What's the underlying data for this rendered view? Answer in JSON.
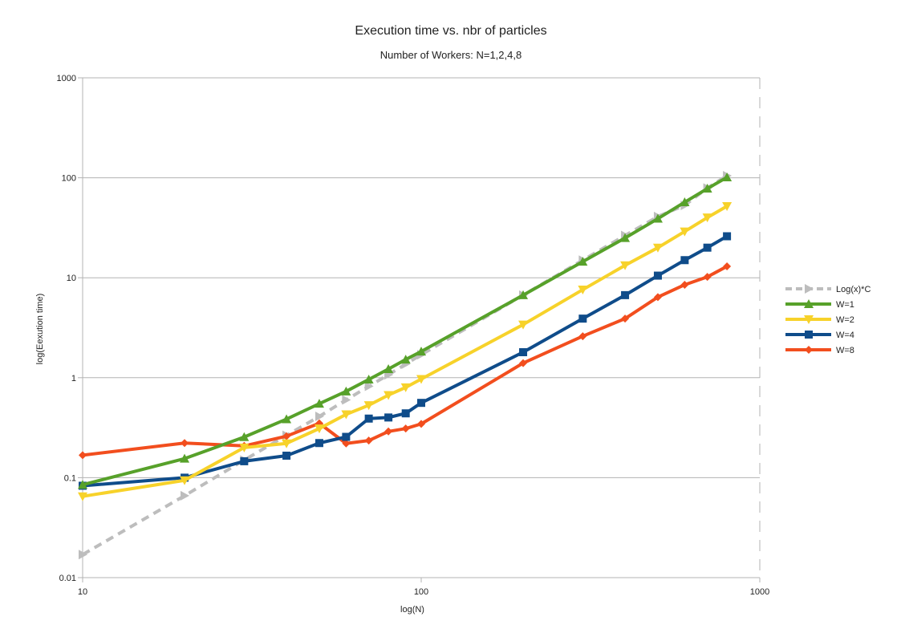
{
  "chart_data": {
    "type": "line",
    "title": "Execution time vs. nbr of particles",
    "subtitle": "Number of Workers: N=1,2,4,8",
    "xlabel": "log(N)",
    "ylabel": "log(Eexution time)",
    "x_scale": "log",
    "y_scale": "log",
    "xlim": [
      10,
      1000
    ],
    "ylim": [
      0.01,
      1000
    ],
    "x_ticks": [
      "10",
      "100",
      "1000"
    ],
    "y_ticks": [
      "0.01",
      "0.1",
      "1",
      "10",
      "100",
      "1000"
    ],
    "grid": true,
    "legend_position": "right",
    "series": [
      {
        "name": "Log(x)*C",
        "color": "#bdbdbd",
        "dashed": true,
        "marker": "triangle-right",
        "x": [
          10,
          20,
          30,
          40,
          50,
          60,
          70,
          80,
          90,
          100,
          200,
          300,
          400,
          500,
          600,
          700,
          800
        ],
        "y": [
          0.017,
          0.066,
          0.15,
          0.265,
          0.41,
          0.6,
          0.82,
          1.07,
          1.37,
          1.7,
          6.7,
          15,
          26.5,
          41,
          53,
          79,
          105
        ]
      },
      {
        "name": "W=1",
        "color": "#57a12a",
        "marker": "triangle-up",
        "x": [
          10,
          20,
          30,
          40,
          50,
          60,
          70,
          80,
          90,
          100,
          200,
          300,
          400,
          500,
          600,
          700,
          800
        ],
        "y": [
          0.085,
          0.155,
          0.255,
          0.385,
          0.55,
          0.73,
          0.96,
          1.22,
          1.52,
          1.83,
          6.7,
          14.5,
          25,
          39,
          57,
          78,
          101
        ]
      },
      {
        "name": "W=2",
        "color": "#f7d22a",
        "marker": "triangle-down",
        "x": [
          10,
          20,
          30,
          40,
          50,
          60,
          70,
          80,
          90,
          100,
          200,
          300,
          400,
          500,
          600,
          700,
          800
        ],
        "y": [
          0.065,
          0.094,
          0.2,
          0.22,
          0.31,
          0.43,
          0.53,
          0.67,
          0.8,
          0.97,
          3.4,
          7.6,
          13.3,
          20,
          29,
          40,
          52
        ]
      },
      {
        "name": "W=4",
        "color": "#0f4c8a",
        "marker": "square",
        "x": [
          10,
          20,
          30,
          40,
          50,
          60,
          70,
          80,
          90,
          100,
          200,
          300,
          400,
          500,
          600,
          700,
          800
        ],
        "y": [
          0.083,
          0.1,
          0.146,
          0.166,
          0.222,
          0.256,
          0.39,
          0.4,
          0.44,
          0.56,
          1.8,
          3.9,
          6.7,
          10.5,
          15,
          20,
          26
        ]
      },
      {
        "name": "W=8",
        "color": "#f24e1e",
        "marker": "diamond",
        "x": [
          10,
          20,
          30,
          40,
          50,
          60,
          70,
          80,
          90,
          100,
          200,
          300,
          400,
          500,
          600,
          700,
          800
        ],
        "y": [
          0.168,
          0.222,
          0.208,
          0.26,
          0.35,
          0.22,
          0.235,
          0.29,
          0.31,
          0.345,
          1.4,
          2.6,
          3.9,
          6.4,
          8.5,
          10.2,
          13
        ]
      }
    ]
  }
}
